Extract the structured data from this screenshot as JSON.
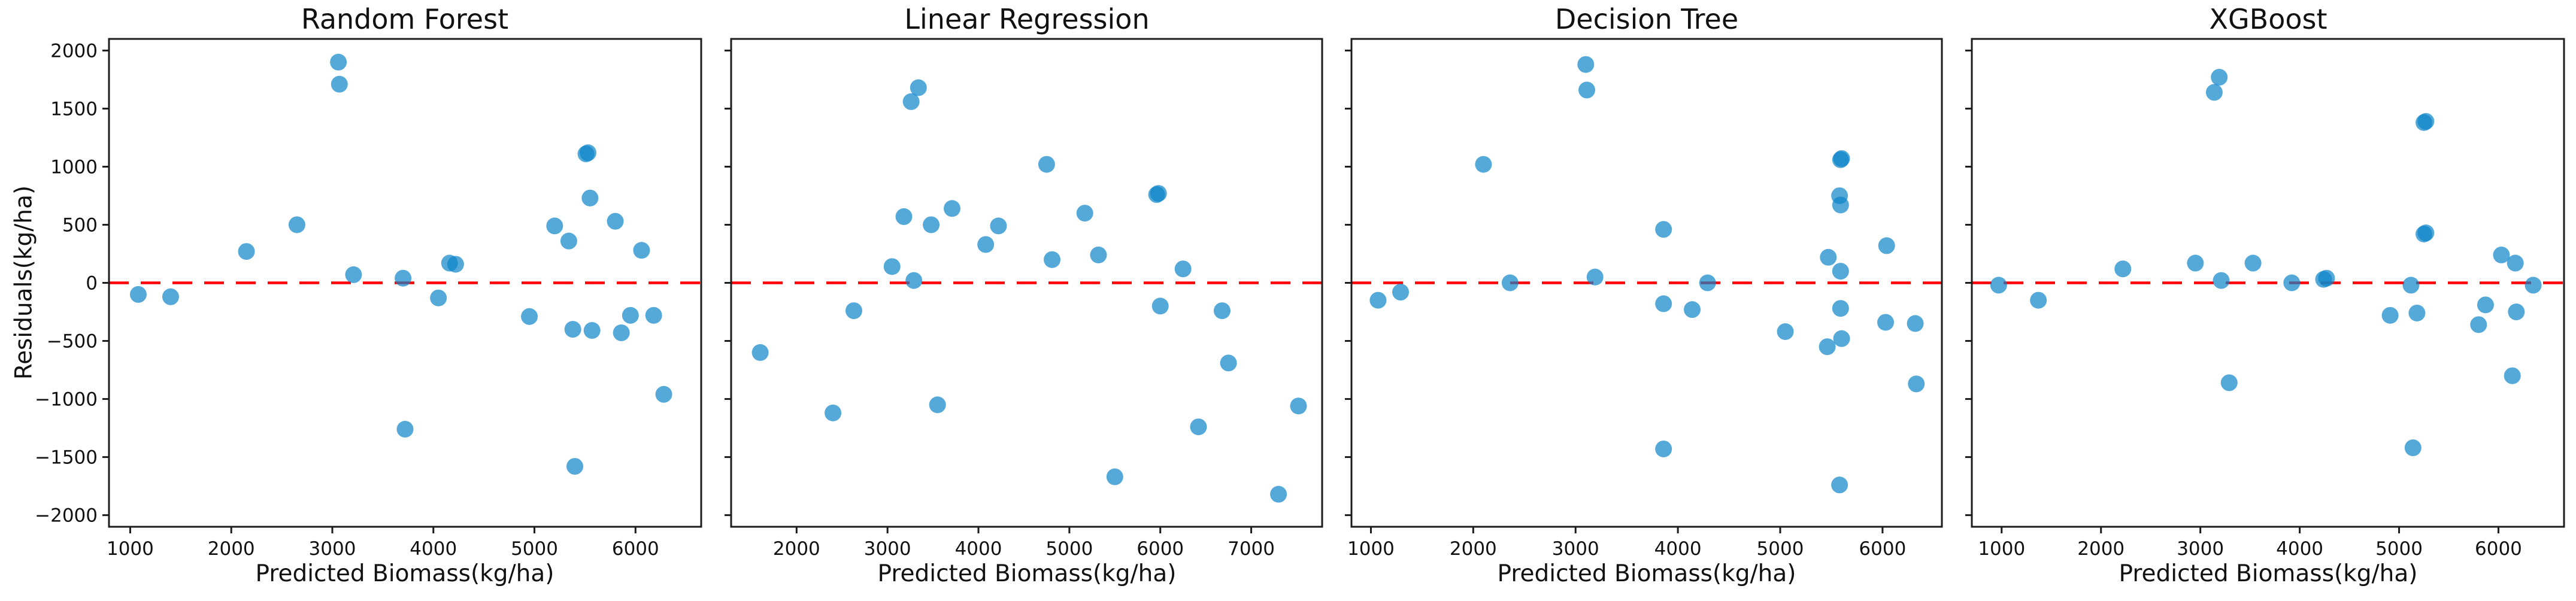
{
  "figure": {
    "ylabel": "Residuals(kg/ha)",
    "background_color": "#ffffff",
    "axis_color": "#1c1c1c",
    "text_color": "#111111",
    "marker_color": "#0b84c9",
    "marker_alpha": 0.7,
    "ref_line": {
      "y": 0,
      "color": "#ff0000",
      "style": "dashed"
    },
    "yticks": [
      2000,
      1500,
      1000,
      500,
      0,
      -500,
      -1000,
      -1500,
      -2000
    ],
    "ytick_labels": [
      "2000",
      "1500",
      "1000",
      "500",
      "0",
      "−500",
      "−1000",
      "−1500",
      "−2000"
    ],
    "ylim": [
      -2100,
      2100
    ]
  },
  "chart_data": [
    {
      "type": "scatter",
      "title": "Random Forest",
      "xlabel": "Predicted Biomass(kg/ha)",
      "ylabel": "Residuals(kg/ha)",
      "xlim": [
        790,
        6650
      ],
      "ylim": [
        -2100,
        2100
      ],
      "xticks": [
        1000,
        2000,
        3000,
        4000,
        5000,
        6000
      ],
      "show_ytick_labels": true,
      "points": [
        [
          1080,
          -100
        ],
        [
          1400,
          -120
        ],
        [
          2150,
          270
        ],
        [
          2650,
          500
        ],
        [
          3060,
          1900
        ],
        [
          3070,
          1710
        ],
        [
          3210,
          70
        ],
        [
          3700,
          40
        ],
        [
          3720,
          -1260
        ],
        [
          4050,
          -130
        ],
        [
          4160,
          170
        ],
        [
          4220,
          160
        ],
        [
          4950,
          -290
        ],
        [
          5200,
          490
        ],
        [
          5340,
          360
        ],
        [
          5380,
          -400
        ],
        [
          5400,
          -1580
        ],
        [
          5510,
          1110
        ],
        [
          5530,
          1120
        ],
        [
          5550,
          730
        ],
        [
          5570,
          -410
        ],
        [
          5800,
          530
        ],
        [
          5860,
          -430
        ],
        [
          5950,
          -280
        ],
        [
          6060,
          280
        ],
        [
          6180,
          -280
        ],
        [
          6280,
          -960
        ]
      ]
    },
    {
      "type": "scatter",
      "title": "Linear Regression",
      "xlabel": "Predicted Biomass(kg/ha)",
      "ylabel": "Residuals(kg/ha)",
      "xlim": [
        1280,
        7780
      ],
      "ylim": [
        -2100,
        2100
      ],
      "xticks": [
        2000,
        3000,
        4000,
        5000,
        6000,
        7000
      ],
      "show_ytick_labels": false,
      "points": [
        [
          1600,
          -600
        ],
        [
          2400,
          -1120
        ],
        [
          2630,
          -240
        ],
        [
          3050,
          140
        ],
        [
          3180,
          570
        ],
        [
          3260,
          1560
        ],
        [
          3290,
          20
        ],
        [
          3340,
          1680
        ],
        [
          3480,
          500
        ],
        [
          3550,
          -1050
        ],
        [
          3710,
          640
        ],
        [
          4080,
          330
        ],
        [
          4220,
          490
        ],
        [
          4750,
          1020
        ],
        [
          4810,
          200
        ],
        [
          5170,
          600
        ],
        [
          5320,
          240
        ],
        [
          5500,
          -1670
        ],
        [
          5960,
          760
        ],
        [
          5980,
          770
        ],
        [
          6000,
          -200
        ],
        [
          6250,
          120
        ],
        [
          6420,
          -1240
        ],
        [
          6680,
          -240
        ],
        [
          6750,
          -690
        ],
        [
          7300,
          -1820
        ],
        [
          7520,
          -1060
        ]
      ]
    },
    {
      "type": "scatter",
      "title": "Decision Tree",
      "xlabel": "Predicted Biomass(kg/ha)",
      "ylabel": "Residuals(kg/ha)",
      "xlim": [
        810,
        6580
      ],
      "ylim": [
        -2100,
        2100
      ],
      "xticks": [
        1000,
        2000,
        3000,
        4000,
        5000,
        6000
      ],
      "show_ytick_labels": false,
      "points": [
        [
          1070,
          -150
        ],
        [
          1290,
          -80
        ],
        [
          2100,
          1020
        ],
        [
          2360,
          0
        ],
        [
          3100,
          1880
        ],
        [
          3110,
          1660
        ],
        [
          3190,
          50
        ],
        [
          3860,
          460
        ],
        [
          3860,
          -180
        ],
        [
          3860,
          -1430
        ],
        [
          4140,
          -230
        ],
        [
          4290,
          0
        ],
        [
          5050,
          -420
        ],
        [
          5460,
          -550
        ],
        [
          5470,
          220
        ],
        [
          5580,
          750
        ],
        [
          5590,
          670
        ],
        [
          5590,
          1060
        ],
        [
          5600,
          1070
        ],
        [
          5590,
          100
        ],
        [
          5590,
          -220
        ],
        [
          5600,
          -480
        ],
        [
          5580,
          -1740
        ],
        [
          6040,
          320
        ],
        [
          6030,
          -340
        ],
        [
          6320,
          -350
        ],
        [
          6330,
          -870
        ]
      ]
    },
    {
      "type": "scatter",
      "title": "XGBoost",
      "xlabel": "Predicted Biomass(kg/ha)",
      "ylabel": "Residuals(kg/ha)",
      "xlim": [
        700,
        6660
      ],
      "ylim": [
        -2100,
        2100
      ],
      "xticks": [
        1000,
        2000,
        3000,
        4000,
        5000,
        6000
      ],
      "show_ytick_labels": false,
      "points": [
        [
          970,
          -20
        ],
        [
          1370,
          -150
        ],
        [
          2220,
          120
        ],
        [
          2950,
          170
        ],
        [
          3140,
          1640
        ],
        [
          3190,
          1770
        ],
        [
          3210,
          20
        ],
        [
          3290,
          -860
        ],
        [
          3530,
          170
        ],
        [
          3920,
          0
        ],
        [
          4240,
          30
        ],
        [
          4270,
          40
        ],
        [
          4910,
          -280
        ],
        [
          5120,
          -20
        ],
        [
          5180,
          -260
        ],
        [
          5140,
          -1420
        ],
        [
          5250,
          1380
        ],
        [
          5270,
          1390
        ],
        [
          5250,
          420
        ],
        [
          5270,
          430
        ],
        [
          5800,
          -360
        ],
        [
          5870,
          -190
        ],
        [
          6030,
          240
        ],
        [
          6170,
          170
        ],
        [
          6140,
          -800
        ],
        [
          6180,
          -250
        ],
        [
          6350,
          -20
        ]
      ]
    }
  ]
}
